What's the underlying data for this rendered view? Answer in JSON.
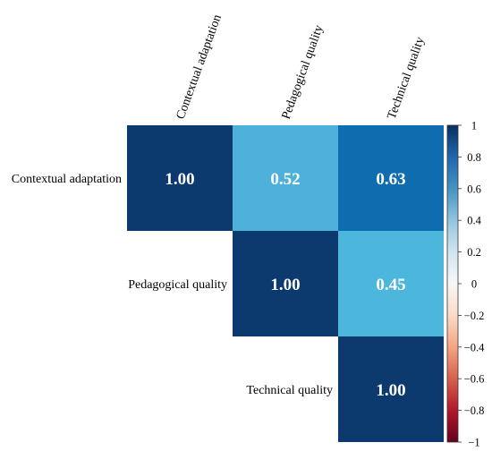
{
  "chart_data": {
    "type": "heatmap",
    "title": "",
    "variables": [
      "Contextual adaptation",
      "Pedagogical quality",
      "Technical quality"
    ],
    "matrix_upper": [
      [
        1.0,
        0.52,
        0.63
      ],
      [
        null,
        1.0,
        0.45
      ],
      [
        null,
        null,
        1.0
      ]
    ],
    "value_labels": [
      [
        "1.00",
        "0.52",
        "0.63"
      ],
      [
        "",
        "1.00",
        "0.45"
      ],
      [
        "",
        "",
        "1.00"
      ]
    ],
    "colorbar": {
      "range": [
        -1,
        1
      ],
      "ticks": [
        "1",
        "0.8",
        "0.6",
        "0.4",
        "0.2",
        "0",
        "−0.2",
        "−0.4",
        "−0.6",
        "−0.8",
        "−1"
      ],
      "colormap": "RdBu",
      "stops": [
        "#67001f",
        "#b2182b",
        "#d6604d",
        "#f4a582",
        "#fddbc7",
        "#f7f7f7",
        "#d1e5f0",
        "#92c5de",
        "#4393c3",
        "#2166ac",
        "#053061"
      ]
    },
    "cell_colors": [
      [
        "#0d3a6e",
        "#4db1d9",
        "#0f6cae"
      ],
      [
        "",
        "#0d3a6e",
        "#4cb6dc"
      ],
      [
        "",
        "",
        "#0d3a6e"
      ]
    ],
    "value_text_color": "#ffffff"
  }
}
